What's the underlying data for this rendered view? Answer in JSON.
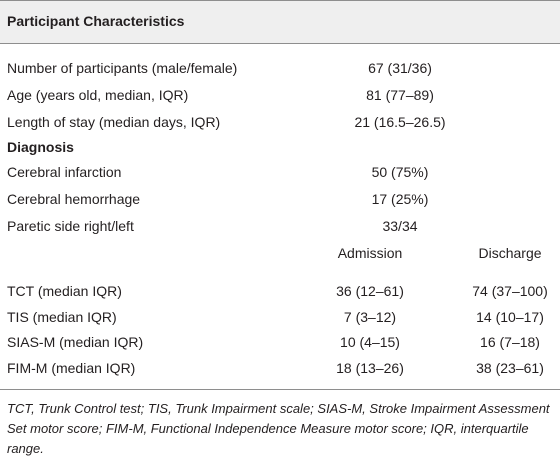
{
  "table": {
    "title": "Participant Characteristics",
    "rows_single": [
      {
        "label": "Number of participants (male/female)",
        "value": "67 (31/36)"
      },
      {
        "label": "Age (years old, median, IQR)",
        "value": "81 (77–89)"
      },
      {
        "label": "Length of stay (median days, IQR)",
        "value": "21 (16.5–26.5)"
      }
    ],
    "diagnosis_heading": "Diagnosis",
    "rows_diagnosis": [
      {
        "label": "Cerebral infarction",
        "value": "50 (75%)"
      },
      {
        "label": "Cerebral hemorrhage",
        "value": "17 (25%)"
      },
      {
        "label": "Paretic side right/left",
        "value": "33/34"
      }
    ],
    "col_headers": [
      "Admission",
      "Discharge"
    ],
    "rows_pair": [
      {
        "label": "TCT (median IQR)",
        "admission": "36 (12–61)",
        "discharge": "74 (37–100)"
      },
      {
        "label": "TIS (median IQR)",
        "admission": "7 (3–12)",
        "discharge": "14 (10–17)"
      },
      {
        "label": "SIAS-M (median IQR)",
        "admission": "10 (4–15)",
        "discharge": "16 (7–18)"
      },
      {
        "label": "FIM-M (median IQR)",
        "admission": "18 (13–26)",
        "discharge": "38 (23–61)"
      }
    ]
  },
  "footnote": "TCT, Trunk Control test; TIS, Trunk Impairment scale; SIAS-M, Stroke Impairment Assessment Set motor score; FIM-M, Functional Independence Measure motor score; IQR, interquartile range."
}
